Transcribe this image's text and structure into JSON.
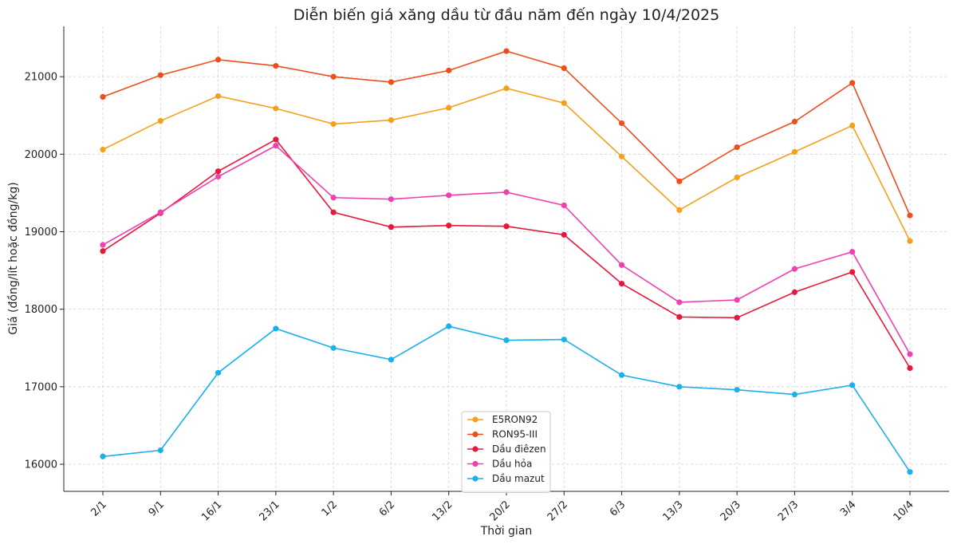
{
  "chart_data": {
    "type": "line",
    "title": "Diễn biến giá xăng dầu từ đầu năm đến ngày 10/4/2025",
    "xlabel": "Thời gian",
    "ylabel": "Giá (đồng/lít hoặc đồng/kg)",
    "categories": [
      "2/1",
      "9/1",
      "16/1",
      "23/1",
      "1/2",
      "6/2",
      "13/2",
      "20/2",
      "27/2",
      "6/3",
      "13/3",
      "20/3",
      "27/3",
      "3/4",
      "10/4"
    ],
    "ylim": [
      15650,
      21650
    ],
    "yticks": [
      16000,
      17000,
      18000,
      19000,
      20000,
      21000
    ],
    "grid": true,
    "legend_position": "bottom-center",
    "series": [
      {
        "name": "E5RON92",
        "color": "#f5a01a",
        "values": [
          20060,
          20430,
          20750,
          20590,
          20390,
          20440,
          20600,
          20850,
          20660,
          19970,
          19280,
          19700,
          20030,
          20370,
          18880
        ]
      },
      {
        "name": "RON95-III",
        "color": "#ee4e1a",
        "values": [
          20740,
          21020,
          21220,
          21140,
          21000,
          20930,
          21080,
          21330,
          21110,
          20400,
          19650,
          20090,
          20420,
          20920,
          19210
        ]
      },
      {
        "name": "Dầu điêzen",
        "color": "#e8183c",
        "values": [
          18750,
          19240,
          19780,
          20190,
          19250,
          19060,
          19080,
          19070,
          18960,
          18330,
          17900,
          17890,
          18220,
          18480,
          17240
        ]
      },
      {
        "name": "Dầu hỏa",
        "color": "#f03fb0",
        "values": [
          18830,
          19250,
          19710,
          20110,
          19440,
          19420,
          19470,
          19510,
          19340,
          18570,
          18090,
          18120,
          18520,
          18740,
          17420
        ]
      },
      {
        "name": "Dầu mazut",
        "color": "#1ab0ee",
        "values": [
          16100,
          16180,
          17180,
          17750,
          17500,
          17350,
          17780,
          17600,
          17610,
          17150,
          17000,
          16960,
          16900,
          17020,
          15900
        ]
      }
    ]
  }
}
